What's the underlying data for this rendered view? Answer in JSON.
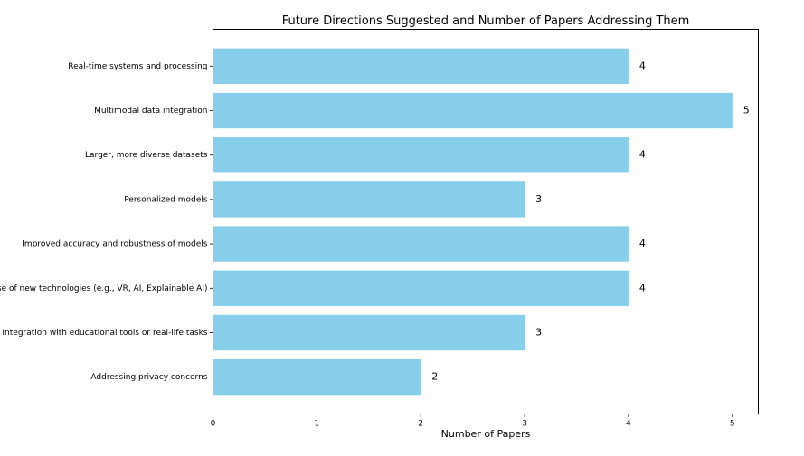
{
  "chart_data": {
    "type": "bar",
    "orientation": "horizontal",
    "title": "Future Directions Suggested and Number of Papers Addressing Them",
    "xlabel": "Number of Papers",
    "ylabel": "",
    "categories": [
      "Real-time systems and processing",
      "Multimodal data integration",
      "Larger, more diverse datasets",
      "Personalized models",
      "Improved accuracy and robustness of models",
      "Use of new technologies (e.g., VR, AI, Explainable AI)",
      "Integration with educational tools or real-life tasks",
      "Addressing privacy concerns"
    ],
    "values": [
      4,
      5,
      4,
      3,
      4,
      4,
      3,
      2
    ],
    "data_labels": [
      "4",
      "5",
      "4",
      "3",
      "4",
      "4",
      "3",
      "2"
    ],
    "xlim": [
      0,
      5.25
    ],
    "xticks": [
      0,
      1,
      2,
      3,
      4,
      5
    ],
    "xtick_labels": [
      "0",
      "1",
      "2",
      "3",
      "4",
      "5"
    ],
    "bar_color": "#87ceeb",
    "grid": false,
    "legend": "none"
  }
}
